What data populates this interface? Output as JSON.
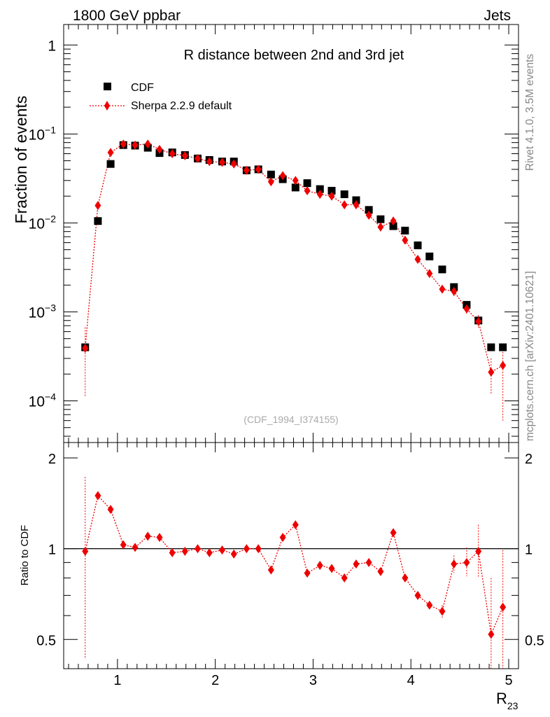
{
  "header": {
    "left": "1800 GeV ppbar",
    "right": "Jets",
    "side_top": "Rivet 4.1.0,  3.5M events",
    "side_bottom": "mcplots.cern.ch [arXiv:2401.10621]"
  },
  "main_panel": {
    "title": "R distance between 2nd and 3rd jet",
    "ylabel": "Fraction of events",
    "watermark": "(CDF_1994_I374155)",
    "ytick_labels": [
      {
        "base": "1",
        "exp": ""
      },
      {
        "base": "10",
        "exp": "−1"
      },
      {
        "base": "10",
        "exp": "−2"
      },
      {
        "base": "10",
        "exp": "−3"
      },
      {
        "base": "10",
        "exp": "−4"
      }
    ]
  },
  "ratio_panel": {
    "ylabel": "Ratio to CDF",
    "ytick_labels": [
      "2",
      "1",
      "0.5"
    ]
  },
  "xaxis": {
    "label_main": "R",
    "label_sub": "23",
    "tick_labels": [
      "1",
      "2",
      "3",
      "4",
      "5"
    ]
  },
  "legend": {
    "data_label": "CDF",
    "mc_label": "Sherpa 2.2.9 default"
  },
  "colors": {
    "data": "#000000",
    "mc": "#ee0000"
  },
  "chart_data": {
    "type": "scatter",
    "title": "R distance between 2nd and 3rd jet",
    "xlabel": "R_23",
    "ylabel": "Fraction of events",
    "xlim": [
      0.45,
      5.1
    ],
    "ylim": [
      3.4e-05,
      1.7
    ],
    "yscale": "log",
    "ratio_ylim": [
      0.4,
      2.25
    ],
    "ratio_yscale": "log",
    "x": [
      0.67,
      0.8,
      0.93,
      1.06,
      1.18,
      1.31,
      1.43,
      1.56,
      1.69,
      1.82,
      1.94,
      2.07,
      2.19,
      2.32,
      2.44,
      2.57,
      2.69,
      2.82,
      2.94,
      3.07,
      3.19,
      3.32,
      3.44,
      3.57,
      3.69,
      3.82,
      3.94,
      4.07,
      4.19,
      4.32,
      4.44,
      4.57,
      4.69,
      4.82,
      4.94
    ],
    "series": [
      {
        "name": "CDF",
        "values": [
          0.0004,
          0.0105,
          0.046,
          0.075,
          0.074,
          0.07,
          0.061,
          0.062,
          0.058,
          0.053,
          0.051,
          0.049,
          0.049,
          0.039,
          0.04,
          0.035,
          0.031,
          0.025,
          0.028,
          0.024,
          0.023,
          0.021,
          0.018,
          0.014,
          0.011,
          0.0092,
          0.0082,
          0.0056,
          0.0042,
          0.003,
          0.0019,
          0.0012,
          0.0008,
          0.0004,
          0.0004
        ]
      },
      {
        "name": "Sherpa 2.2.9 default",
        "values": [
          0.00039,
          0.0157,
          0.062,
          0.077,
          0.075,
          0.077,
          0.067,
          0.06,
          0.057,
          0.053,
          0.049,
          0.048,
          0.046,
          0.039,
          0.04,
          0.029,
          0.034,
          0.03,
          0.023,
          0.021,
          0.02,
          0.016,
          0.016,
          0.0122,
          0.009,
          0.0105,
          0.0064,
          0.0039,
          0.0027,
          0.0018,
          0.0017,
          0.00108,
          0.00078,
          0.00021,
          0.00025
        ],
        "err_low": [
          0.00028,
          0.0011,
          0.002,
          0.002,
          0.002,
          0.002,
          0.002,
          0.002,
          0.002,
          0.002,
          0.002,
          0.002,
          0.002,
          0.0015,
          0.0015,
          0.0012,
          0.0012,
          0.0012,
          0.001,
          0.001,
          0.001,
          0.0008,
          0.0008,
          0.0007,
          0.0006,
          0.0006,
          0.0004,
          0.0003,
          0.0002,
          0.00017,
          0.0002,
          0.00015,
          0.00014,
          9e-05,
          0.00019
        ],
        "err_high": [
          0.00028,
          0.0011,
          0.002,
          0.002,
          0.002,
          0.002,
          0.002,
          0.002,
          0.002,
          0.002,
          0.002,
          0.002,
          0.002,
          0.0015,
          0.0015,
          0.0012,
          0.0012,
          0.0012,
          0.001,
          0.001,
          0.001,
          0.0008,
          0.0008,
          0.0007,
          0.0006,
          0.0006,
          0.0004,
          0.0003,
          0.0002,
          0.00017,
          0.0002,
          0.00015,
          0.00014,
          9e-05,
          0.00019
        ]
      }
    ],
    "ratio": {
      "name": "Sherpa 2.2.9 default / CDF",
      "values": [
        0.98,
        1.5,
        1.35,
        1.03,
        1.01,
        1.1,
        1.09,
        0.97,
        0.98,
        1.0,
        0.97,
        0.99,
        0.96,
        1.0,
        1.0,
        0.85,
        1.09,
        1.2,
        0.83,
        0.88,
        0.86,
        0.8,
        0.89,
        0.9,
        0.84,
        1.13,
        0.8,
        0.7,
        0.65,
        0.62,
        0.89,
        0.9,
        0.98,
        0.52,
        0.64
      ],
      "err_low": [
        0.55,
        0.05,
        0.04,
        0.02,
        0.02,
        0.02,
        0.02,
        0.02,
        0.02,
        0.02,
        0.02,
        0.02,
        0.02,
        0.02,
        0.02,
        0.02,
        0.02,
        0.02,
        0.02,
        0.02,
        0.02,
        0.02,
        0.02,
        0.02,
        0.02,
        0.02,
        0.02,
        0.02,
        0.02,
        0.03,
        0.06,
        0.09,
        0.18,
        0.13,
        0.3
      ],
      "err_high": [
        0.75,
        0.05,
        0.04,
        0.02,
        0.02,
        0.02,
        0.02,
        0.02,
        0.02,
        0.02,
        0.02,
        0.02,
        0.02,
        0.02,
        0.02,
        0.02,
        0.02,
        0.02,
        0.02,
        0.02,
        0.02,
        0.02,
        0.02,
        0.02,
        0.02,
        0.02,
        0.02,
        0.02,
        0.02,
        0.03,
        0.06,
        0.11,
        0.22,
        0.28,
        0.35
      ]
    }
  }
}
